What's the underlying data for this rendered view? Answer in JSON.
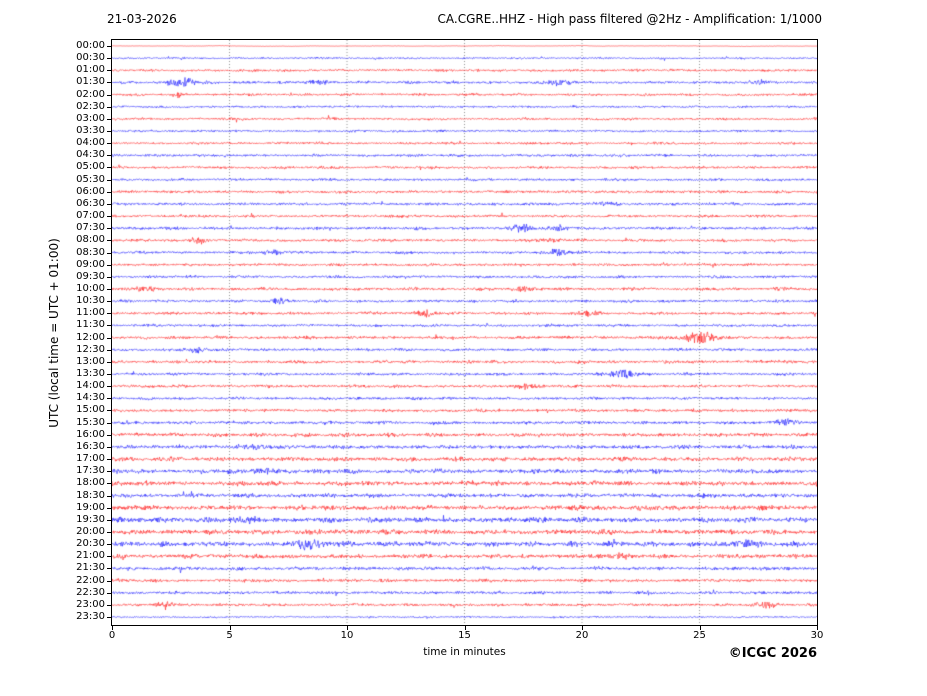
{
  "header": {
    "date": "21-03-2026",
    "title": "CA.CGRE..HHZ - High pass filtered @2Hz - Amplification: 1/1000"
  },
  "axes": {
    "x_label": "time in minutes",
    "y_label": "UTC (local time = UTC + 01:00)",
    "x_ticks": [
      "0",
      "5",
      "10",
      "15",
      "20",
      "25",
      "30"
    ],
    "x_range": [
      0,
      30
    ],
    "grid": "dotted vertical lines every 5 minutes"
  },
  "footer": {
    "copyright": "©ICGC 2026"
  },
  "colors": {
    "trace_red": "#ff0000",
    "trace_blue": "#0000ff",
    "grid": "#777777",
    "axis": "#000000",
    "background": "#ffffff"
  },
  "chart_data": {
    "type": "line",
    "subtype": "helicorder-seismogram",
    "title": "CA.CGRE..HHZ - High pass filtered @2Hz - Amplification: 1/1000",
    "xlabel": "time in minutes",
    "ylabel": "UTC (local time = UTC + 01:00)",
    "x_range": [
      0,
      30
    ],
    "minutes_per_row": 30,
    "row_colors_alternate": [
      "red",
      "blue"
    ],
    "rows": [
      {
        "label": "00:00",
        "color": "red",
        "amp": 0.15,
        "events": []
      },
      {
        "label": "00:30",
        "color": "blue",
        "amp": 0.75,
        "events": []
      },
      {
        "label": "01:00",
        "color": "red",
        "amp": 1.0,
        "events": []
      },
      {
        "label": "01:30",
        "color": "blue",
        "amp": 1.1,
        "events": [
          [
            3.0,
            2.3,
            0.4
          ],
          [
            8.7,
            1.4,
            0.3
          ],
          [
            19.0,
            1.5,
            0.4
          ],
          [
            27.6,
            1.3,
            0.3
          ]
        ]
      },
      {
        "label": "02:00",
        "color": "red",
        "amp": 1.0,
        "events": [
          [
            2.8,
            1.8,
            0.15
          ]
        ]
      },
      {
        "label": "02:30",
        "color": "blue",
        "amp": 0.9,
        "events": []
      },
      {
        "label": "03:00",
        "color": "red",
        "amp": 0.95,
        "events": []
      },
      {
        "label": "03:30",
        "color": "blue",
        "amp": 0.9,
        "events": []
      },
      {
        "label": "04:00",
        "color": "red",
        "amp": 0.95,
        "events": []
      },
      {
        "label": "04:30",
        "color": "blue",
        "amp": 1.1,
        "events": []
      },
      {
        "label": "05:00",
        "color": "red",
        "amp": 1.05,
        "events": []
      },
      {
        "label": "05:30",
        "color": "blue",
        "amp": 1.0,
        "events": []
      },
      {
        "label": "06:00",
        "color": "red",
        "amp": 1.1,
        "events": []
      },
      {
        "label": "06:30",
        "color": "blue",
        "amp": 1.15,
        "events": [
          [
            21.0,
            1.0,
            0.3
          ]
        ]
      },
      {
        "label": "07:00",
        "color": "red",
        "amp": 1.1,
        "events": []
      },
      {
        "label": "07:30",
        "color": "blue",
        "amp": 1.2,
        "events": [
          [
            17.4,
            1.8,
            0.35
          ],
          [
            18.9,
            1.4,
            0.3
          ]
        ]
      },
      {
        "label": "08:00",
        "color": "red",
        "amp": 1.15,
        "events": [
          [
            3.7,
            2.2,
            0.2
          ],
          [
            18.7,
            1.2,
            0.3
          ]
        ]
      },
      {
        "label": "08:30",
        "color": "blue",
        "amp": 1.1,
        "events": [
          [
            6.9,
            1.2,
            0.25
          ],
          [
            18.9,
            1.7,
            0.4
          ]
        ]
      },
      {
        "label": "09:00",
        "color": "red",
        "amp": 1.05,
        "events": []
      },
      {
        "label": "09:30",
        "color": "blue",
        "amp": 1.1,
        "events": []
      },
      {
        "label": "10:00",
        "color": "red",
        "amp": 1.2,
        "events": [
          [
            1.4,
            1.5,
            0.3
          ],
          [
            17.6,
            1.3,
            0.4
          ]
        ]
      },
      {
        "label": "10:30",
        "color": "blue",
        "amp": 1.1,
        "events": [
          [
            7.2,
            1.3,
            0.25
          ]
        ]
      },
      {
        "label": "11:00",
        "color": "red",
        "amp": 1.15,
        "events": [
          [
            13.3,
            2.0,
            0.25
          ],
          [
            20.3,
            1.5,
            0.3
          ]
        ]
      },
      {
        "label": "11:30",
        "color": "blue",
        "amp": 1.1,
        "events": []
      },
      {
        "label": "12:00",
        "color": "red",
        "amp": 1.2,
        "events": [
          [
            25.0,
            3.2,
            0.5
          ]
        ]
      },
      {
        "label": "12:30",
        "color": "blue",
        "amp": 1.1,
        "events": [
          [
            3.6,
            1.4,
            0.3
          ]
        ]
      },
      {
        "label": "13:00",
        "color": "red",
        "amp": 1.2,
        "events": []
      },
      {
        "label": "13:30",
        "color": "blue",
        "amp": 1.15,
        "events": [
          [
            21.8,
            2.2,
            0.45
          ]
        ]
      },
      {
        "label": "14:00",
        "color": "red",
        "amp": 1.2,
        "events": [
          [
            17.6,
            1.3,
            0.4
          ]
        ]
      },
      {
        "label": "14:30",
        "color": "blue",
        "amp": 1.1,
        "events": []
      },
      {
        "label": "15:00",
        "color": "red",
        "amp": 1.2,
        "events": []
      },
      {
        "label": "15:30",
        "color": "blue",
        "amp": 1.3,
        "events": [
          [
            28.6,
            1.4,
            0.3
          ]
        ]
      },
      {
        "label": "16:00",
        "color": "red",
        "amp": 1.5,
        "events": []
      },
      {
        "label": "16:30",
        "color": "blue",
        "amp": 1.6,
        "events": [
          [
            6.1,
            1.3,
            0.4
          ]
        ]
      },
      {
        "label": "17:00",
        "color": "red",
        "amp": 1.7,
        "events": []
      },
      {
        "label": "17:30",
        "color": "blue",
        "amp": 1.8,
        "events": [
          [
            6.5,
            2.0,
            0.4
          ]
        ]
      },
      {
        "label": "18:00",
        "color": "red",
        "amp": 1.9,
        "events": []
      },
      {
        "label": "18:30",
        "color": "blue",
        "amp": 1.7,
        "events": []
      },
      {
        "label": "19:00",
        "color": "red",
        "amp": 2.0,
        "events": []
      },
      {
        "label": "19:30",
        "color": "blue",
        "amp": 2.1,
        "events": [
          [
            5.6,
            1.4,
            0.4
          ]
        ]
      },
      {
        "label": "20:00",
        "color": "red",
        "amp": 2.0,
        "events": []
      },
      {
        "label": "20:30",
        "color": "blue",
        "amp": 2.1,
        "events": [
          [
            8.3,
            1.6,
            0.5
          ],
          [
            26.9,
            1.4,
            0.4
          ]
        ]
      },
      {
        "label": "21:00",
        "color": "red",
        "amp": 1.7,
        "events": [
          [
            21.5,
            1.3,
            0.4
          ]
        ]
      },
      {
        "label": "21:30",
        "color": "blue",
        "amp": 1.4,
        "events": []
      },
      {
        "label": "22:00",
        "color": "red",
        "amp": 1.3,
        "events": []
      },
      {
        "label": "22:30",
        "color": "blue",
        "amp": 1.2,
        "events": []
      },
      {
        "label": "23:00",
        "color": "red",
        "amp": 1.1,
        "events": [
          [
            2.2,
            1.3,
            0.3
          ],
          [
            27.8,
            1.7,
            0.3
          ]
        ]
      },
      {
        "label": "23:30",
        "color": "blue",
        "amp": 0.7,
        "events": []
      }
    ]
  }
}
